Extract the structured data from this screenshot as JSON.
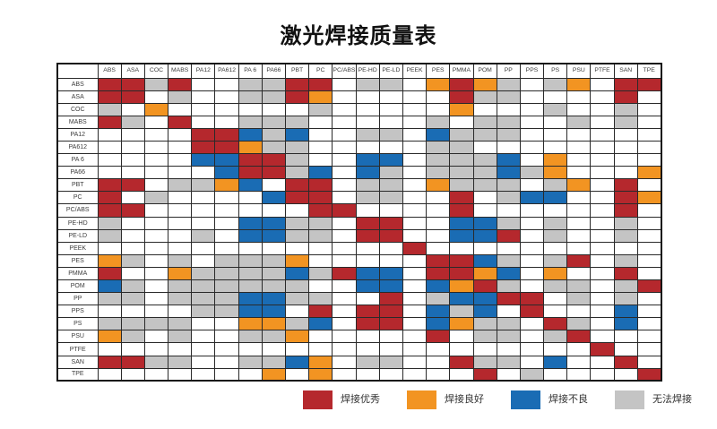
{
  "title": "激光焊接质量表",
  "legend": {
    "items": [
      {
        "label": "焊接优秀",
        "code": "R",
        "color": "#b5282d"
      },
      {
        "label": "焊接良好",
        "code": "O",
        "color": "#f29422"
      },
      {
        "label": "焊接不良",
        "code": "B",
        "color": "#1a6cb4"
      },
      {
        "label": "无法焊接",
        "code": "G",
        "color": "#c4c4c4"
      }
    ]
  },
  "chart_data": {
    "type": "heatmap",
    "title": "激光焊接质量表",
    "x_labels": [
      "ABS",
      "ASA",
      "COC",
      "MABS",
      "PA12",
      "PA612",
      "PA 6",
      "PA66",
      "PBT",
      "PC",
      "PC/ABS",
      "PE-HD",
      "PE-LD",
      "PEEK",
      "PES",
      "PMMA",
      "POM",
      "PP",
      "PPS",
      "PS",
      "PSU",
      "PTFE",
      "SAN",
      "TPE"
    ],
    "y_labels": [
      "ABS",
      "ASA",
      "COC",
      "MABS",
      "PA12",
      "PA612",
      "PA 6",
      "PA66",
      "PBT",
      "PC",
      "PC/ABS",
      "PE-HD",
      "PE-LD",
      "PEEK",
      "PES",
      "PMMA",
      "POM",
      "PP",
      "PPS",
      "PS",
      "PSU",
      "PTFE",
      "SAN",
      "TPE"
    ],
    "value_codes": {
      "R": "焊接优秀",
      "O": "焊接良好",
      "B": "焊接不良",
      "G": "无法焊接",
      "W": ""
    },
    "cell_colors": {
      "R": "#b5282d",
      "O": "#f29422",
      "B": "#1a6cb4",
      "G": "#c4c4c4",
      "W": "#ffffff"
    },
    "rows": [
      {
        "label": "ABS",
        "cells": "RRGRWWGGRRWGGWOROGWGOWRR"
      },
      {
        "label": "ASA",
        "cells": "RRWGWWGGROWWWWWRGGWWWWRW"
      },
      {
        "label": "COC",
        "cells": "GWOWWWWWWGWWWWWOWWWGWWGW"
      },
      {
        "label": "MABS",
        "cells": "RGWRWWGGGWWWWWGWGGWWGWGW"
      },
      {
        "label": "PA12",
        "cells": "WWWWRRBGBWWGGWBGGGWWWWWW"
      },
      {
        "label": "PA612",
        "cells": "WWWWRROGGWWWWWGGWWWWWWWW"
      },
      {
        "label": "PA 6",
        "cells": "WWWWBBRRGWWBBWGGGBWOWWWW"
      },
      {
        "label": "PA66",
        "cells": "WWWWWBRRGBWBGWGGGBGOWWWO"
      },
      {
        "label": "PBT",
        "cells": "RRWGGOBWRRWGGWOGGGWGOWRW"
      },
      {
        "label": "PC",
        "cells": "RWGWWWWBRRWGGWWRWGBBWWRO"
      },
      {
        "label": "PC/ABS",
        "cells": "RRWWWWWWWRRWWWWRWWWWWWRW"
      },
      {
        "label": "PE-HD",
        "cells": "GWWWWWBBGGWRRWWBBGWGWWGW"
      },
      {
        "label": "PE-LD",
        "cells": "GWWWGWBBGGWRRWWBBRWGWWGW"
      },
      {
        "label": "PEEK",
        "cells": "WWWWWWWWWWWWWRWWWWWWWWWW"
      },
      {
        "label": "PES",
        "cells": "OGWGWGGGOWWWWWRRBGWGRWGW"
      },
      {
        "label": "PMMA",
        "cells": "RWWOGGGGBGRBBWRROBWOWWRW"
      },
      {
        "label": "POM",
        "cells": "BGWGGGGGGWWBBWBORGWGGWGR"
      },
      {
        "label": "PP",
        "cells": "GGWGGGBBGGWWRWGBBRRWGWGW"
      },
      {
        "label": "PPS",
        "cells": "WWWWGGBBWRWRRWBGBWRWWWBW"
      },
      {
        "label": "PS",
        "cells": "GGGGWWOOGBWRRWBOGGWRGWBW"
      },
      {
        "label": "PSU",
        "cells": "OGWGWWGGOWWWWWRWGGWGRWWW"
      },
      {
        "label": "PTFE",
        "cells": "WWWWWWWWWWWWWWWWWWWWWRWW"
      },
      {
        "label": "SAN",
        "cells": "RRGGWWGGBOWGGWWRGGWBWWRW"
      },
      {
        "label": "TPE",
        "cells": "WWWWWWWOWOWWWWWWRWGWWWWR"
      }
    ],
    "legend_position": "bottom-right",
    "grid": true
  }
}
